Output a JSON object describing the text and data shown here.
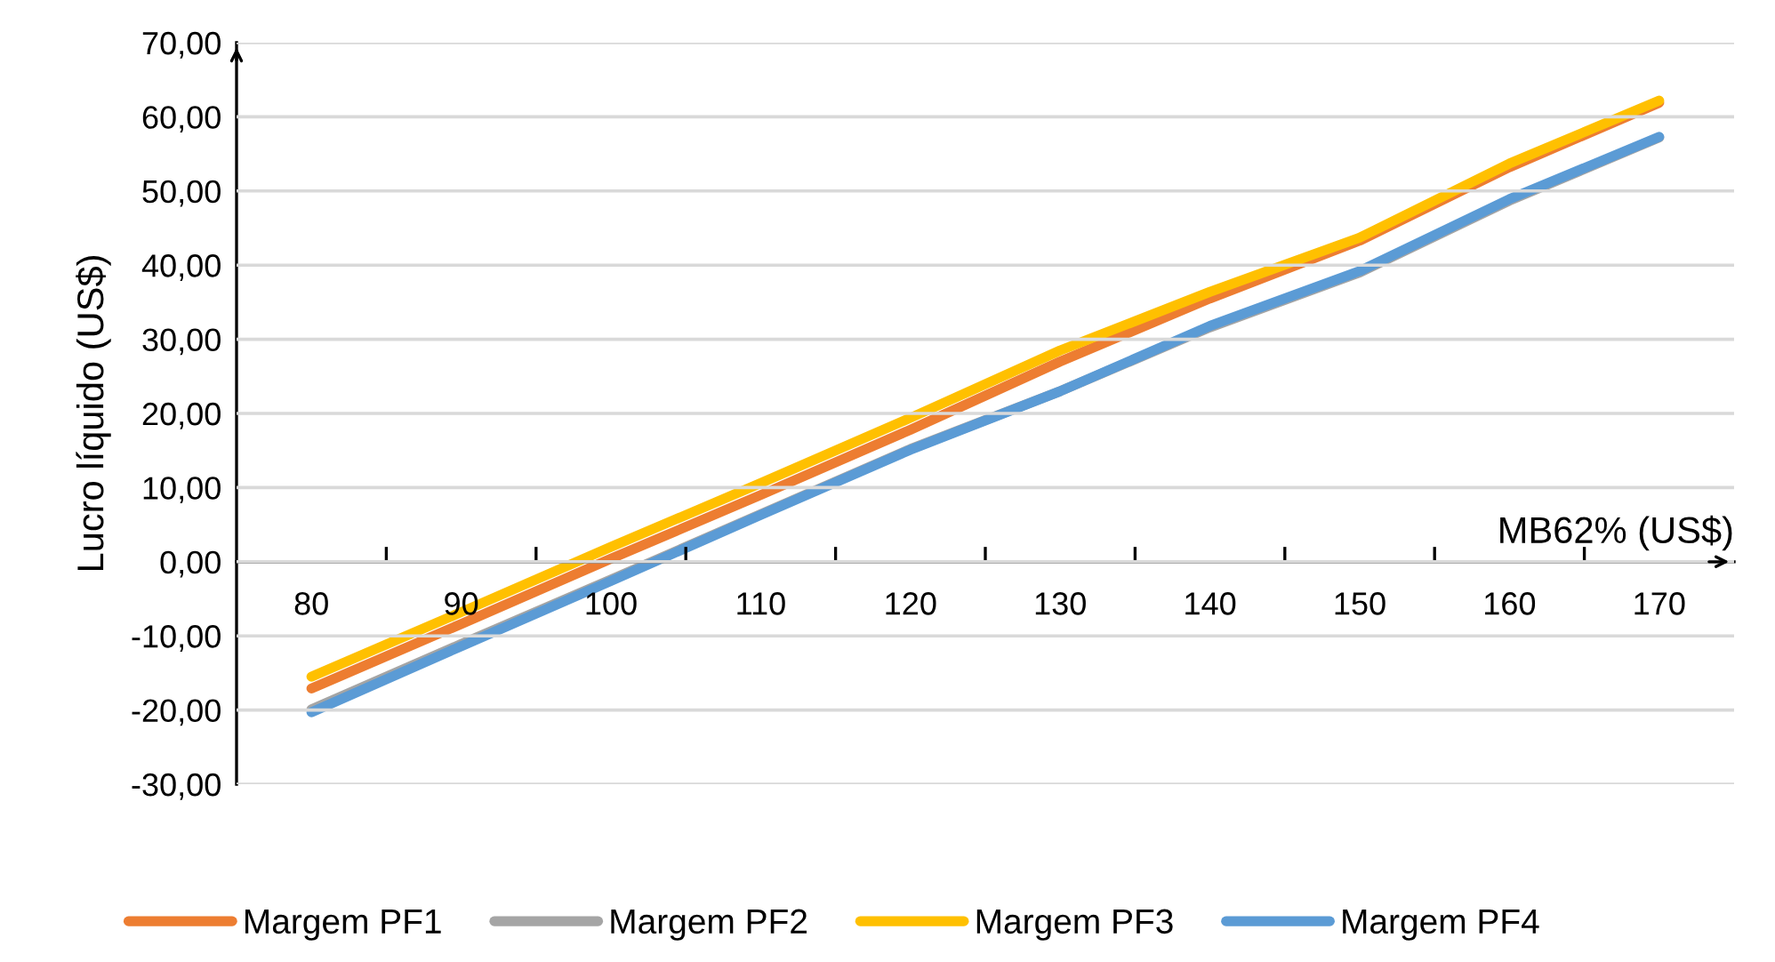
{
  "chart_data": {
    "type": "line",
    "xlabel": "MB62% (US$)",
    "ylabel": "Lucro líquido (US$)",
    "categories": [
      "80",
      "90",
      "100",
      "110",
      "120",
      "130",
      "140",
      "150",
      "160",
      "170"
    ],
    "series": [
      {
        "name": "Margem PF1",
        "color": "#ed7d31",
        "values": [
          -17.1,
          -8.4,
          0.4,
          9.0,
          17.8,
          27.0,
          35.5,
          43.3,
          53.2,
          61.9
        ]
      },
      {
        "name": "Margem PF2",
        "color": "#a5a5a5",
        "values": [
          -19.9,
          -11.1,
          -2.4,
          6.4,
          15.2,
          23.0,
          31.6,
          39.0,
          48.7,
          57.2
        ]
      },
      {
        "name": "Margem PF3",
        "color": "#ffc000",
        "values": [
          -15.5,
          -6.8,
          2.0,
          10.6,
          19.4,
          28.5,
          36.4,
          43.7,
          53.7,
          62.2
        ]
      },
      {
        "name": "Margem PF4",
        "color": "#5b9bd5",
        "values": [
          -20.3,
          -11.4,
          -2.6,
          6.3,
          15.1,
          23.0,
          31.8,
          39.2,
          48.9,
          57.3
        ]
      }
    ],
    "ylim": [
      -30,
      70
    ],
    "yticks": [
      {
        "value": -30,
        "label": "-30,00"
      },
      {
        "value": -20,
        "label": "-20,00"
      },
      {
        "value": -10,
        "label": "-10,00"
      },
      {
        "value": 0,
        "label": "0,00"
      },
      {
        "value": 10,
        "label": "10,00"
      },
      {
        "value": 20,
        "label": "20,00"
      },
      {
        "value": 30,
        "label": "30,00"
      },
      {
        "value": 40,
        "label": "40,00"
      },
      {
        "value": 50,
        "label": "50,00"
      },
      {
        "value": 60,
        "label": "60,00"
      },
      {
        "value": 70,
        "label": "70,00"
      }
    ],
    "grid": "y",
    "legend": "bottom",
    "marker": "none",
    "line_style": "solid"
  }
}
